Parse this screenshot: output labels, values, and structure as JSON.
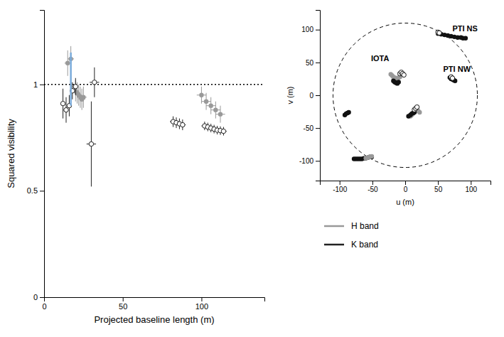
{
  "chart_data": [
    {
      "type": "scatter",
      "xlabel": "Projected baseline length (m)",
      "ylabel": "Squared visibility",
      "xlim": [
        0,
        140
      ],
      "ylim": [
        0.0,
        1.35
      ],
      "xticks": [
        0,
        50,
        100
      ],
      "yticks": [
        0.0,
        0.5,
        1.0
      ],
      "hline": 1.0,
      "series": [
        {
          "name": "H band",
          "color": "#999999",
          "marker": "filled",
          "x": [
            15,
            17,
            20,
            21,
            22,
            23,
            24,
            25,
            100,
            103,
            106,
            109,
            112
          ],
          "values": [
            1.1,
            1.12,
            0.97,
            0.96,
            0.95,
            0.94,
            0.93,
            0.94,
            0.95,
            0.92,
            0.9,
            0.88,
            0.86
          ],
          "xerr": [
            2,
            2,
            2,
            2,
            2,
            2,
            2,
            2,
            3,
            3,
            3,
            3,
            3
          ],
          "yerr": [
            0.06,
            0.06,
            0.05,
            0.05,
            0.05,
            0.05,
            0.05,
            0.05,
            0.04,
            0.04,
            0.04,
            0.04,
            0.04
          ]
        },
        {
          "name": "K band",
          "color": "#222222",
          "marker": "open",
          "x": [
            12,
            14,
            16,
            18,
            20,
            30,
            32,
            82,
            84,
            86,
            88,
            102,
            104,
            106,
            108,
            110,
            112,
            114
          ],
          "values": [
            0.91,
            0.88,
            0.9,
            0.97,
            0.99,
            0.72,
            1.01,
            0.825,
            0.82,
            0.815,
            0.81,
            0.805,
            0.8,
            0.795,
            0.79,
            0.785,
            0.783,
            0.78
          ],
          "xerr": [
            1.5,
            1.5,
            1.5,
            1.5,
            1.5,
            3,
            3,
            2,
            2,
            2,
            2,
            2,
            2,
            2,
            2,
            2,
            2,
            2
          ],
          "yerr": [
            0.07,
            0.06,
            0.05,
            0.04,
            0.04,
            0.2,
            0.07,
            0.025,
            0.025,
            0.025,
            0.025,
            0.02,
            0.02,
            0.02,
            0.02,
            0.02,
            0.02,
            0.02
          ]
        },
        {
          "type": "line",
          "color": "#7aabdb",
          "x": [
            17,
            17
          ],
          "values": [
            0.9,
            1.15
          ]
        }
      ]
    },
    {
      "type": "scatter",
      "xlabel": "u (m)",
      "ylabel": "v (m)",
      "xlim": [
        -130,
        130
      ],
      "ylim": [
        -130,
        130
      ],
      "xticks": [
        -100,
        -50,
        0,
        50,
        100
      ],
      "yticks": [
        -100,
        -50,
        0,
        50,
        100
      ],
      "circle_radius": 110,
      "annotations": [
        {
          "text": "PTI NS",
          "x": 72,
          "y": 98
        },
        {
          "text": "IOTA",
          "x": -52,
          "y": 52
        },
        {
          "text": "PTI NW",
          "x": 58,
          "y": 36
        }
      ],
      "series": [
        {
          "color": "#999999",
          "marker": "filled",
          "x": [
            -22,
            -20,
            -18,
            -16,
            -14,
            -12,
            -10,
            -8
          ],
          "values": [
            32,
            30,
            28,
            27,
            26,
            25,
            27,
            28
          ]
        },
        {
          "color": "#111111",
          "marker": "filled",
          "x": [
            -18,
            -16,
            -14,
            -12,
            -10
          ],
          "values": [
            22,
            20,
            19,
            18,
            20
          ]
        },
        {
          "color": "#111111",
          "marker": "open",
          "x": [
            -8,
            -6,
            -4,
            -2
          ],
          "values": [
            33,
            35,
            33,
            31
          ]
        },
        {
          "color": "#999999",
          "marker": "filled",
          "x": [
            8,
            10,
            12,
            14,
            16,
            18,
            20,
            22
          ],
          "values": [
            -32,
            -30,
            -28,
            -26,
            -24,
            -22,
            -24,
            -26
          ]
        },
        {
          "color": "#111111",
          "marker": "filled",
          "x": [
            5,
            8,
            10,
            12,
            14
          ],
          "values": [
            -32,
            -30,
            -28,
            -27,
            -26
          ]
        },
        {
          "color": "#111111",
          "marker": "open",
          "x": [
            14,
            16,
            18
          ],
          "values": [
            -22,
            -20,
            -18
          ]
        },
        {
          "color": "#111111",
          "marker": "filled",
          "x": [
            -92,
            -90,
            -88,
            -86
          ],
          "values": [
            -30,
            -28,
            -27,
            -26
          ]
        },
        {
          "color": "#111111",
          "marker": "filled",
          "x": [
            50,
            55,
            60,
            65,
            70,
            75,
            80,
            85,
            88,
            92
          ],
          "values": [
            94,
            93,
            92,
            91,
            90,
            89,
            88,
            88,
            87,
            87
          ]
        },
        {
          "color": "#111111",
          "marker": "open",
          "x": [
            50,
            52
          ],
          "values": [
            96,
            95
          ]
        },
        {
          "color": "#111111",
          "marker": "filled",
          "x": [
            68,
            70,
            72,
            74,
            76
          ],
          "values": [
            27,
            25,
            24,
            23,
            22
          ]
        },
        {
          "color": "#111111",
          "marker": "open",
          "x": [
            70,
            72
          ],
          "values": [
            28,
            26
          ]
        },
        {
          "color": "#111111",
          "marker": "filled",
          "x": [
            -78,
            -75,
            -72,
            -69,
            -66,
            -63,
            -60,
            -57,
            -54,
            -51
          ],
          "values": [
            -97,
            -97,
            -97,
            -97,
            -97,
            -96,
            -96,
            -95,
            -94,
            -94
          ]
        },
        {
          "color": "#999999",
          "marker": "filled",
          "x": [
            -60,
            -57,
            -54,
            -51
          ],
          "values": [
            -96,
            -95,
            -94,
            -93
          ]
        }
      ]
    }
  ]
}
